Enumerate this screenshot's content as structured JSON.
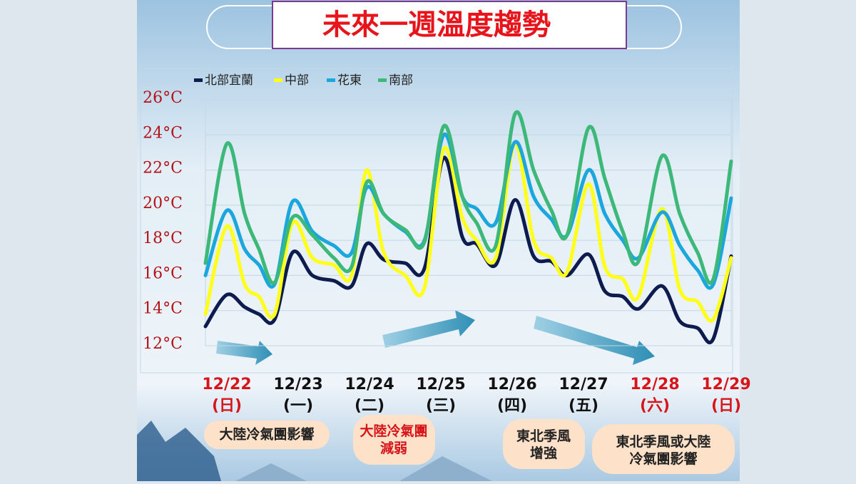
{
  "chart_data": {
    "type": "line",
    "title": "未來一週溫度趨勢",
    "x": [
      -0.3,
      0.0,
      0.25,
      0.45,
      0.67,
      0.92,
      1.2,
      1.5,
      1.75,
      1.96,
      2.2,
      2.5,
      2.77,
      3.04,
      3.3,
      3.5,
      3.77,
      4.04,
      4.3,
      4.55,
      4.77,
      5.07,
      5.3,
      5.55,
      5.77,
      6.1,
      6.35,
      6.6,
      6.82,
      7.07
    ],
    "series": [
      {
        "name": "北部宜蘭",
        "color": "#0d1b4f",
        "values": [
          13.1,
          14.9,
          14.2,
          13.8,
          13.5,
          17.3,
          16.0,
          15.7,
          15.4,
          17.8,
          16.9,
          16.7,
          16.4,
          22.7,
          18.2,
          17.8,
          16.6,
          20.3,
          17.1,
          16.8,
          16.0,
          17.2,
          15.1,
          14.8,
          14.1,
          15.4,
          13.4,
          13.0,
          12.4,
          17.1
        ]
      },
      {
        "name": "中部",
        "color": "#ffff1a",
        "values": [
          13.8,
          18.8,
          15.5,
          14.8,
          13.8,
          19.0,
          17.0,
          16.6,
          16.0,
          22.0,
          17.3,
          16.0,
          15.3,
          23.2,
          19.3,
          18.0,
          17.0,
          23.5,
          18.0,
          17.0,
          16.2,
          21.2,
          16.5,
          15.8,
          14.8,
          19.8,
          15.2,
          14.5,
          13.5,
          17.0
        ]
      },
      {
        "name": "花東",
        "color": "#1ba6dd",
        "values": [
          16.0,
          19.7,
          17.5,
          16.6,
          15.5,
          20.2,
          18.5,
          17.7,
          17.3,
          21.0,
          19.5,
          18.5,
          18.0,
          24.0,
          20.5,
          19.8,
          19.0,
          23.6,
          20.5,
          19.2,
          18.3,
          22.0,
          19.5,
          18.0,
          17.0,
          19.6,
          17.7,
          16.3,
          15.5,
          20.4
        ]
      },
      {
        "name": "南部",
        "color": "#3cb878",
        "values": [
          16.7,
          23.5,
          19.5,
          17.5,
          15.6,
          19.3,
          18.3,
          17.0,
          16.5,
          21.3,
          19.5,
          18.6,
          17.9,
          24.5,
          20.5,
          19.0,
          17.7,
          25.2,
          22.0,
          19.7,
          18.3,
          24.4,
          21.5,
          18.5,
          16.8,
          22.8,
          19.5,
          17.3,
          15.8,
          22.5
        ]
      }
    ],
    "xlim": [
      -0.3,
      7.07
    ],
    "xticks": [
      {
        "value": 0,
        "label": "12/22"
      },
      {
        "value": 1,
        "label": "12/23"
      },
      {
        "value": 2,
        "label": "12/24"
      },
      {
        "value": 3,
        "label": "12/25"
      },
      {
        "value": 4,
        "label": "12/26"
      },
      {
        "value": 5,
        "label": "12/27"
      },
      {
        "value": 6,
        "label": "12/28"
      },
      {
        "value": 7,
        "label": "12/29"
      }
    ],
    "weekdays": [
      "(日)",
      "(一)",
      "(二)",
      "(三)",
      "(四)",
      "(五)",
      "(六)",
      "(日)"
    ],
    "x_label_colors": [
      "#d8141b",
      "#111111",
      "#111111",
      "#111111",
      "#111111",
      "#111111",
      "#d8141b",
      "#d8141b"
    ],
    "ylim": [
      12,
      26
    ],
    "yticks": [
      {
        "value": 12,
        "label": "12°C"
      },
      {
        "value": 14,
        "label": "14°C"
      },
      {
        "value": 16,
        "label": "16°C"
      },
      {
        "value": 18,
        "label": "18°C"
      },
      {
        "value": 20,
        "label": "20°C"
      },
      {
        "value": 22,
        "label": "22°C"
      },
      {
        "value": 24,
        "label": "24°C"
      },
      {
        "value": 26,
        "label": "26°C"
      }
    ],
    "grid": true
  },
  "notes": [
    "大陸冷氣團影響",
    "大陸冷氣團 減弱",
    "東北季風 增強",
    "東北季風或大陸 冷氣團影響"
  ]
}
